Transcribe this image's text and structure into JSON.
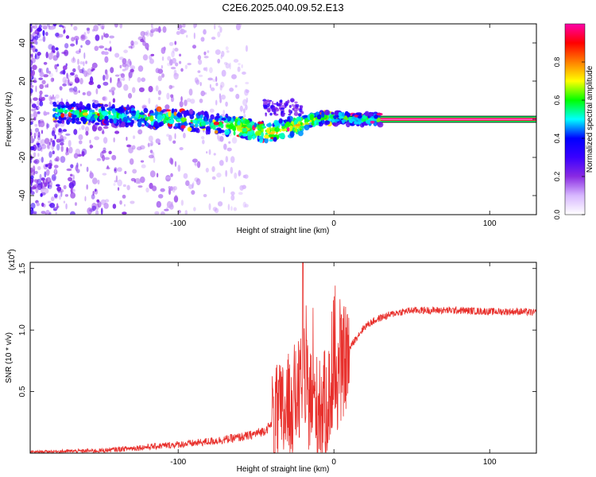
{
  "chart_data": [
    {
      "type": "heatmap",
      "title": "C2E6.2025.040.09.52.E13",
      "xlabel": "Height of straight line (km)",
      "ylabel": "Frequency (Hz)",
      "xlim": [
        -195,
        130
      ],
      "ylim": [
        -50,
        50
      ],
      "xticks": [
        -100,
        0,
        100
      ],
      "yticks": [
        -40,
        -20,
        0,
        20,
        40
      ],
      "colorbar": {
        "label": "Normalized spectral amplitude",
        "range": [
          0.0,
          1.0
        ],
        "ticks": [
          0.0,
          0.2,
          0.4,
          0.6,
          0.8
        ],
        "tick_labels": [
          "0.0",
          "0.2",
          "0.4",
          "0.6",
          "0.8"
        ],
        "colormap": [
          "#ffffff",
          "#d8b8ff",
          "#8a2be2",
          "#3a00ff",
          "#0000ff",
          "#00ffff",
          "#00ff00",
          "#ffff00",
          "#ff7f00",
          "#ff0000",
          "#ff00aa"
        ]
      },
      "ridge": {
        "description_points_x": [
          -190,
          -160,
          -140,
          -120,
          -100,
          -80,
          -60,
          -50,
          -40,
          -30,
          -20,
          -12,
          -5,
          0,
          5,
          10,
          30,
          60,
          100,
          130
        ],
        "description_points_y": [
          4,
          3,
          2,
          1,
          0,
          -2,
          -4,
          -6,
          -7,
          -5,
          -2,
          0,
          1,
          0,
          1,
          0,
          0,
          0,
          0,
          0
        ]
      },
      "band": {
        "x_start": 8,
        "x_end": 130,
        "center": 0,
        "half_width": 1.8
      }
    },
    {
      "type": "line",
      "title": "",
      "xlabel": "Height of straight line (km)",
      "ylabel": "SNR (10 * v/v)",
      "scale_label": "(x10",
      "scale_exponent": "4",
      "xlim": [
        -195,
        130
      ],
      "ylim": [
        0,
        1.55
      ],
      "xticks": [
        -100,
        0,
        100
      ],
      "yticks": [
        0.5,
        1.0,
        1.5
      ],
      "ytick_labels": [
        "0.5",
        "1.0",
        "1.5"
      ],
      "color": "#e8302c",
      "trend_x": [
        -195,
        -150,
        -110,
        -90,
        -70,
        -55,
        -45,
        -38,
        -30,
        -25,
        -20,
        -15,
        -10,
        -5,
        0,
        5,
        10,
        15,
        20,
        25,
        30,
        40,
        50,
        60,
        80,
        100,
        120,
        130
      ],
      "trend_y": [
        0.01,
        0.02,
        0.06,
        0.08,
        0.11,
        0.14,
        0.18,
        0.25,
        0.35,
        0.45,
        0.5,
        0.45,
        0.35,
        0.4,
        0.55,
        0.7,
        0.85,
        0.95,
        1.03,
        1.07,
        1.1,
        1.14,
        1.16,
        1.16,
        1.16,
        1.15,
        1.15,
        1.14
      ]
    }
  ]
}
